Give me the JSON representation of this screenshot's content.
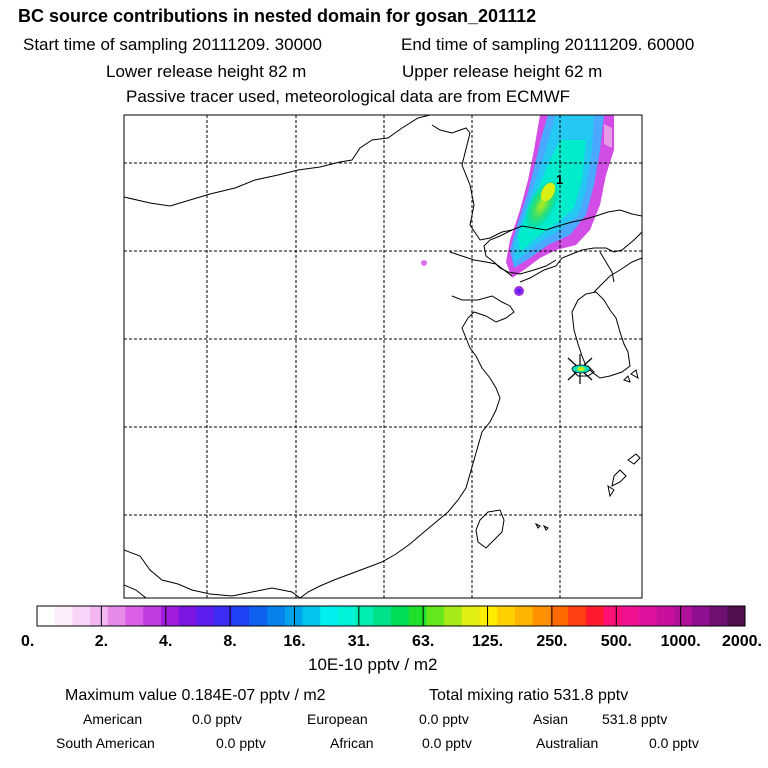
{
  "header": {
    "title": "BC  source contributions in nested domain for gosan_201112",
    "start_time": "Start time of sampling 20111209. 30000",
    "end_time": "End time of sampling 20111209. 60000",
    "lower_height": "Lower release height   82 m",
    "upper_height": "Upper release height   62 m",
    "tracer_note": "Passive tracer used, meteorological data are from ECMWF"
  },
  "map": {
    "site_marker_label": "1",
    "site_marker_color": "#000000",
    "coastline_color": "#000000",
    "grid_color": "#000000"
  },
  "colorbar": {
    "tick_labels": [
      "0.",
      "2.",
      "4.",
      "8.",
      "16.",
      "31.",
      "63.",
      "125.",
      "250.",
      "500.",
      "1000.",
      "2000."
    ],
    "colors": [
      "#ffffff",
      "#fdeefd",
      "#f8d4f8",
      "#f2b6f2",
      "#e68ae8",
      "#d95fe6",
      "#c13de2",
      "#a21ddf",
      "#7d16e3",
      "#5c1ff0",
      "#3c2df5",
      "#2042f5",
      "#0d62f2",
      "#0682ee",
      "#03a2ec",
      "#04c3ec",
      "#00f0f0",
      "#00f5d8",
      "#00eeb0",
      "#00e28a",
      "#00dc55",
      "#1ee02c",
      "#66e61c",
      "#a8ea18",
      "#e0ee10",
      "#ffee00",
      "#ffd000",
      "#ffb400",
      "#ff9000",
      "#ff6a00",
      "#ff4010",
      "#ff1a30",
      "#ff1077",
      "#f01090",
      "#e010a0",
      "#c8109e",
      "#b0109a",
      "#901090",
      "#701070",
      "#501050"
    ],
    "units": "10E-10 pptv / m2"
  },
  "stats": {
    "max_value": "Maximum value  0.184E-07 pptv / m2",
    "total_mixing": "Total mixing ratio      531.8 pptv",
    "american_label": "American",
    "american_value": "0.0 pptv",
    "european_label": "European",
    "european_value": "0.0 pptv",
    "asian_label": "Asian",
    "asian_value": "531.8 pptv",
    "south_american_label": "South American",
    "south_american_value": "0.0 pptv",
    "african_label": "African",
    "african_value": "0.0 pptv",
    "australian_label": "Australian",
    "australian_value": "0.0 pptv"
  }
}
